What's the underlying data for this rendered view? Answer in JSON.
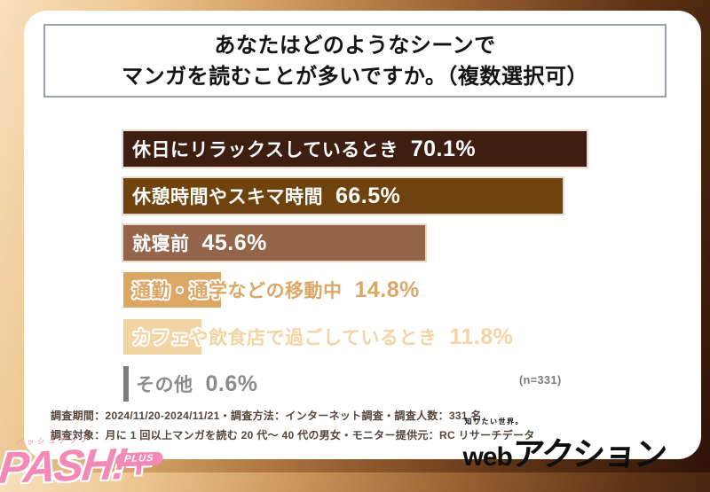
{
  "title": {
    "line1": "あなたはどのようなシーンで",
    "line2": "マンガを読むことが多いですか。（複数選択可）"
  },
  "chart_data": {
    "type": "bar",
    "orientation": "horizontal",
    "title": "あなたはどのようなシーンでマンガを読むことが多いですか。（複数選択可）",
    "unit": "%",
    "sample_note": "(n=331)",
    "xlim": [
      0,
      75
    ],
    "categories": [
      "休日にリラックスしているとき",
      "休憩時間やスキマ時間",
      "就寝前",
      "通勤・通学などの移動中",
      "カフェや飲食店で過ごしているとき",
      "その他"
    ],
    "values": [
      70.1,
      66.5,
      45.6,
      14.8,
      11.8,
      0.6
    ],
    "value_labels": [
      "70.1%",
      "66.5%",
      "45.6%",
      "14.8%",
      "11.8%",
      "0.6%"
    ],
    "bar_colors": [
      "#3d1e10",
      "#70430e",
      "#956549",
      "#dca765",
      "#f3d4a4",
      "#7d7d7d"
    ],
    "text_colors": [
      "#ffffff",
      "#ffffff",
      "#ffffff",
      "#dca765",
      "#f3d4a4",
      "#8c8c8c"
    ],
    "text_styles": [
      "t-white",
      "t-white",
      "t-white",
      "t-outline",
      "t-outline",
      "t-outline"
    ]
  },
  "footer": {
    "line1": "調査期間：2024/11/20-2024/11/21・調査方法：インターネット調査・調査人数：331 名",
    "line2": "調査対象：月に 1 回以上マンガを読む 20 代～ 40 代の男女・モニター提供元：RC リサーチデータ"
  },
  "logo": {
    "tagline": "知りたい世界。",
    "web": "web",
    "brand": "アクション"
  },
  "watermark": {
    "katakana": "パッシュアップ",
    "main": "PASH!+",
    "badge": "PLUS"
  },
  "colors": {
    "frame_gradient_start": "#f8e0bc",
    "frame_gradient_end": "#2f1408",
    "card_bg": "#ffffff",
    "title_border": "#98a3ad",
    "footer_text": "#55453c",
    "note_gray": "#7a7a7a",
    "watermark_pink": "#f28ab5",
    "logo_black": "#0e0e0e"
  }
}
